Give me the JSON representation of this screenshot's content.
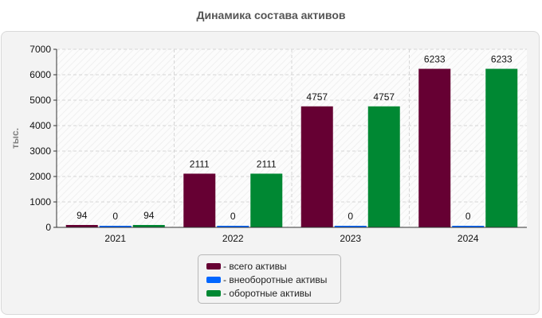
{
  "chart_data": {
    "type": "bar",
    "title": "Динамика состава активов",
    "xlabel": "",
    "ylabel": "тыс.",
    "categories": [
      "2021",
      "2022",
      "2023",
      "2024"
    ],
    "ylim": [
      0,
      7000
    ],
    "yticks": [
      0,
      1000,
      2000,
      3000,
      4000,
      5000,
      6000,
      7000
    ],
    "grid": true,
    "legend_position": "bottom-center",
    "series": [
      {
        "name": "- всего активы",
        "color": "#660033",
        "values": [
          94,
          2111,
          4757,
          6233
        ]
      },
      {
        "name": "- внеоборотные активы",
        "color": "#0066ff",
        "values": [
          0,
          0,
          0,
          0
        ]
      },
      {
        "name": "- оборотные активы",
        "color": "#008833",
        "values": [
          94,
          2111,
          4757,
          6233
        ]
      }
    ]
  }
}
